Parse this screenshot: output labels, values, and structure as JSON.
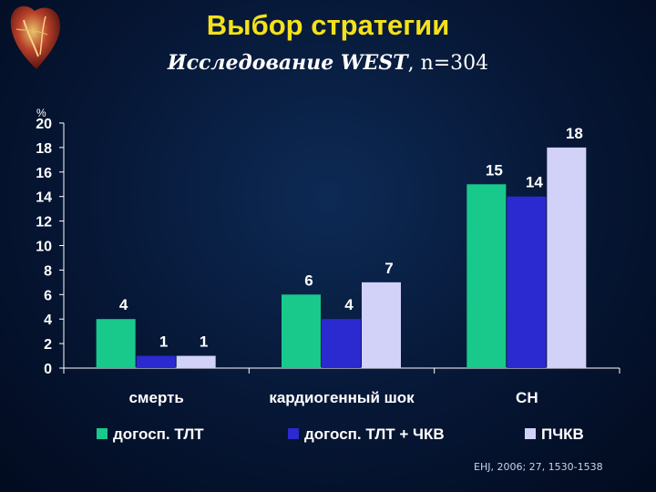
{
  "title": "Выбор стратегии",
  "subtitle": {
    "study": "Исследование WEST",
    "n": ", n=304"
  },
  "reference": "EHJ, 2006; 27, 1530-1538",
  "icons": {
    "logo": "heart-icon"
  },
  "colors": {
    "title": "#f4e21a",
    "series": [
      "#19c98c",
      "#2a2ad0",
      "#d2d2f8"
    ],
    "text": "#ffffff"
  },
  "chart_data": {
    "type": "bar",
    "unit_label": "%",
    "categories": [
      "смерть",
      "кардиогенный шок",
      "СН"
    ],
    "series": [
      {
        "name": "догосп. ТЛТ",
        "values": [
          4,
          6,
          15
        ]
      },
      {
        "name": "догосп. ТЛТ + ЧКВ",
        "values": [
          1,
          4,
          14
        ]
      },
      {
        "name": "ПЧКВ",
        "values": [
          1,
          7,
          18
        ]
      }
    ],
    "ylim": [
      0,
      20
    ],
    "yticks": [
      0,
      2,
      4,
      6,
      8,
      10,
      12,
      14,
      16,
      18,
      20
    ],
    "grid": false,
    "legend_position": "bottom"
  }
}
